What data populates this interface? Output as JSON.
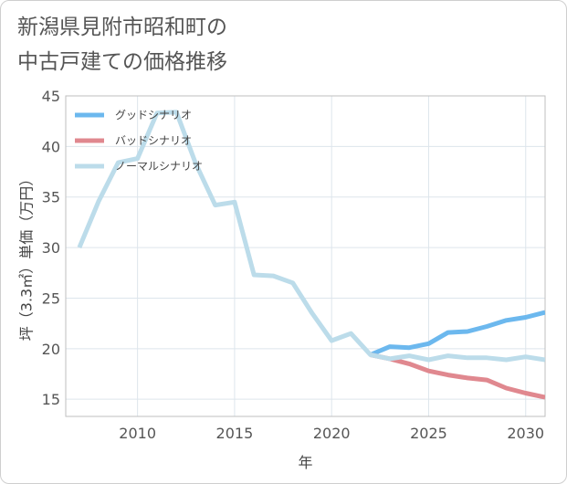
{
  "title_line1": "新潟県見附市昭和町の",
  "title_line2": "中古戸建ての価格推移",
  "chart_data": {
    "type": "line",
    "title": "新潟県見附市昭和町の中古戸建ての価格推移",
    "xlabel": "年",
    "ylabel": "坪（3.3㎡）単価（万円）",
    "xlim": [
      2006.3,
      2031
    ],
    "ylim": [
      13.3,
      45
    ],
    "xticks": [
      2010,
      2015,
      2020,
      2025,
      2030
    ],
    "yticks": [
      15,
      20,
      25,
      30,
      35,
      40,
      45
    ],
    "grid": true,
    "legend_position": "top-left",
    "series": [
      {
        "name": "グッドシナリオ",
        "color": "#6cb8ee",
        "x": [
          2022,
          2023,
          2024,
          2025,
          2026,
          2027,
          2028,
          2029,
          2030,
          2031
        ],
        "y": [
          19.4,
          20.2,
          20.1,
          20.5,
          21.6,
          21.7,
          22.2,
          22.8,
          23.1,
          23.6
        ]
      },
      {
        "name": "バッドシナリオ",
        "color": "#e0888f",
        "x": [
          2022,
          2023,
          2024,
          2025,
          2026,
          2027,
          2028,
          2029,
          2030,
          2031
        ],
        "y": [
          19.4,
          19.0,
          18.5,
          17.8,
          17.4,
          17.1,
          16.9,
          16.1,
          15.6,
          15.2
        ]
      },
      {
        "name": "ノーマルシナリオ",
        "color": "#bcdcea",
        "x": [
          2007,
          2008,
          2009,
          2010,
          2011,
          2012,
          2013,
          2014,
          2015,
          2016,
          2017,
          2018,
          2019,
          2020,
          2021,
          2022,
          2023,
          2024,
          2025,
          2026,
          2027,
          2028,
          2029,
          2030,
          2031
        ],
        "y": [
          30.0,
          34.6,
          38.4,
          38.8,
          43.3,
          43.4,
          38.3,
          34.2,
          34.5,
          27.3,
          27.2,
          26.5,
          23.5,
          20.8,
          21.5,
          19.4,
          19.0,
          19.3,
          18.9,
          19.3,
          19.1,
          19.1,
          18.9,
          19.2,
          18.9
        ]
      }
    ]
  }
}
